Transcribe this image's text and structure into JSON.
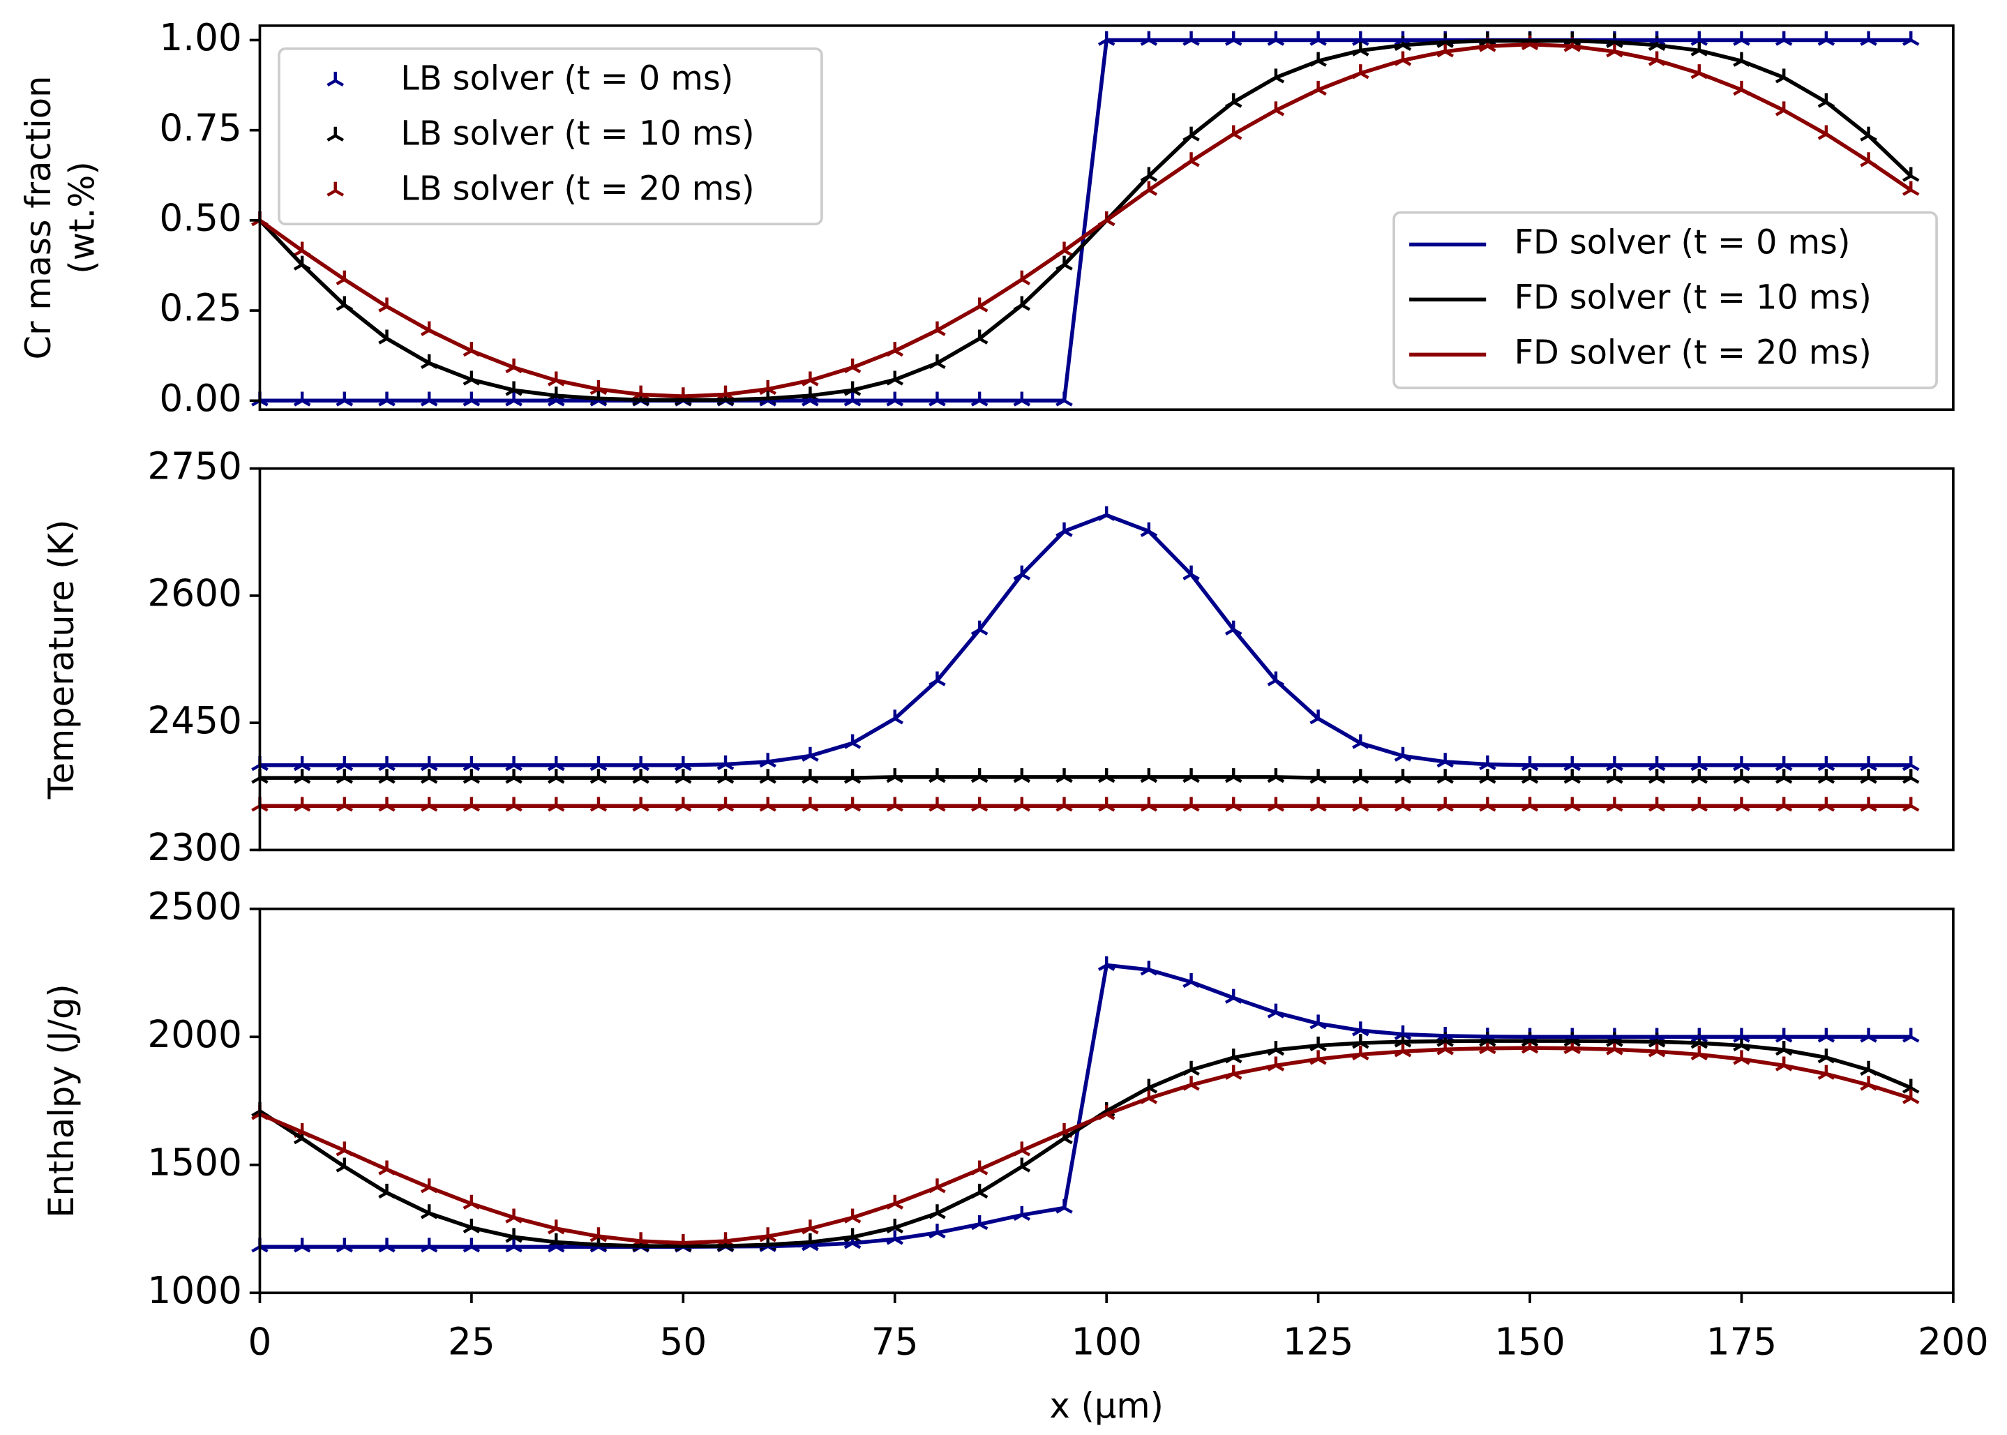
{
  "chart_data": [
    {
      "type": "line",
      "ylabel": [
        "Cr mass fraction",
        "(wt.%)"
      ],
      "x": [
        0,
        5,
        10,
        15,
        20,
        25,
        30,
        35,
        40,
        45,
        50,
        55,
        60,
        65,
        70,
        75,
        80,
        85,
        90,
        95,
        100,
        105,
        110,
        115,
        120,
        125,
        130,
        135,
        140,
        145,
        150,
        155,
        160,
        165,
        170,
        175,
        180,
        185,
        190,
        195
      ],
      "xlim": [
        0,
        200
      ],
      "ylim": [
        -0.025,
        1.04
      ],
      "yticks": [
        {
          "value": 0,
          "label": "0.00"
        },
        {
          "value": 0.25,
          "label": "0.25"
        },
        {
          "value": 0.5,
          "label": "0.50"
        },
        {
          "value": 0.75,
          "label": "0.75"
        },
        {
          "value": 1,
          "label": "1.00"
        }
      ],
      "series": [
        {
          "name": "LB solver (t = 0 ms)",
          "color": "#00008b",
          "marker": "tri_up",
          "legend_loc": "upper left",
          "values": [
            0,
            0,
            0,
            0,
            0,
            0,
            0,
            0,
            0,
            0,
            0,
            0,
            0,
            0,
            0,
            0,
            0,
            0,
            0,
            0,
            1,
            1,
            1,
            1,
            1,
            1,
            1,
            1,
            1,
            1,
            1,
            1,
            1,
            1,
            1,
            1,
            1,
            1,
            1,
            1
          ]
        },
        {
          "name": "LB solver (t = 10 ms)",
          "color": "#000000",
          "marker": "tri_up",
          "legend_loc": "upper left",
          "values": [
            0.5,
            0.377,
            0.265,
            0.172,
            0.104,
            0.058,
            0.029,
            0.014,
            0.006,
            0.002,
            0.002,
            0.002,
            0.006,
            0.014,
            0.029,
            0.058,
            0.104,
            0.172,
            0.265,
            0.377,
            0.5,
            0.623,
            0.735,
            0.828,
            0.896,
            0.942,
            0.971,
            0.986,
            0.994,
            0.998,
            0.998,
            0.998,
            0.994,
            0.986,
            0.971,
            0.942,
            0.896,
            0.828,
            0.735,
            0.623
          ]
        },
        {
          "name": "LB solver (t = 20 ms)",
          "color": "#8b0000",
          "marker": "tri_up",
          "legend_loc": "upper left",
          "values": [
            0.5,
            0.416,
            0.336,
            0.261,
            0.195,
            0.138,
            0.092,
            0.056,
            0.032,
            0.017,
            0.012,
            0.017,
            0.032,
            0.056,
            0.092,
            0.138,
            0.195,
            0.261,
            0.336,
            0.416,
            0.5,
            0.584,
            0.664,
            0.739,
            0.805,
            0.862,
            0.908,
            0.944,
            0.968,
            0.983,
            0.988,
            0.983,
            0.968,
            0.944,
            0.908,
            0.862,
            0.805,
            0.739,
            0.664,
            0.584
          ]
        },
        {
          "name": "FD solver (t = 0 ms)",
          "color": "#00008b",
          "legend_loc": "lower right",
          "values": [
            0,
            0,
            0,
            0,
            0,
            0,
            0,
            0,
            0,
            0,
            0,
            0,
            0,
            0,
            0,
            0,
            0,
            0,
            0,
            0,
            1,
            1,
            1,
            1,
            1,
            1,
            1,
            1,
            1,
            1,
            1,
            1,
            1,
            1,
            1,
            1,
            1,
            1,
            1,
            1
          ]
        },
        {
          "name": "FD solver (t = 10 ms)",
          "color": "#000000",
          "legend_loc": "lower right",
          "values": [
            0.5,
            0.377,
            0.265,
            0.172,
            0.104,
            0.058,
            0.029,
            0.014,
            0.006,
            0.002,
            0.002,
            0.002,
            0.006,
            0.014,
            0.029,
            0.058,
            0.104,
            0.172,
            0.265,
            0.377,
            0.5,
            0.623,
            0.735,
            0.828,
            0.896,
            0.942,
            0.971,
            0.986,
            0.994,
            0.998,
            0.998,
            0.998,
            0.994,
            0.986,
            0.971,
            0.942,
            0.896,
            0.828,
            0.735,
            0.623
          ]
        },
        {
          "name": "FD solver (t = 20 ms)",
          "color": "#8b0000",
          "legend_loc": "lower right",
          "values": [
            0.5,
            0.416,
            0.336,
            0.261,
            0.195,
            0.138,
            0.092,
            0.056,
            0.032,
            0.017,
            0.012,
            0.017,
            0.032,
            0.056,
            0.092,
            0.138,
            0.195,
            0.261,
            0.336,
            0.416,
            0.5,
            0.584,
            0.664,
            0.739,
            0.805,
            0.862,
            0.908,
            0.944,
            0.968,
            0.983,
            0.988,
            0.983,
            0.968,
            0.944,
            0.908,
            0.862,
            0.805,
            0.739,
            0.664,
            0.584
          ]
        }
      ]
    },
    {
      "type": "line",
      "ylabel": "Temperature (K)",
      "x": [
        0,
        5,
        10,
        15,
        20,
        25,
        30,
        35,
        40,
        45,
        50,
        55,
        60,
        65,
        70,
        75,
        80,
        85,
        90,
        95,
        100,
        105,
        110,
        115,
        120,
        125,
        130,
        135,
        140,
        145,
        150,
        155,
        160,
        165,
        170,
        175,
        180,
        185,
        190,
        195
      ],
      "xlim": [
        0,
        200
      ],
      "ylim": [
        2300,
        2750
      ],
      "yticks": [
        2300,
        2450,
        2600,
        2750
      ],
      "series": [
        {
          "color": "#00008b",
          "marker": "tri_up",
          "values": [
            2400,
            2400,
            2400,
            2400,
            2400,
            2400,
            2400,
            2400,
            2400,
            2400,
            2400,
            2401,
            2404,
            2411,
            2426,
            2455,
            2500,
            2560,
            2625,
            2676,
            2695,
            2676,
            2625,
            2560,
            2500,
            2455,
            2426,
            2411,
            2404,
            2401,
            2400,
            2400,
            2400,
            2400,
            2400,
            2400,
            2400,
            2400,
            2400,
            2400
          ]
        },
        {
          "color": "#000000",
          "marker": "tri_up",
          "values": [
            2385,
            2385,
            2385,
            2385,
            2385,
            2385,
            2385,
            2385,
            2385,
            2385,
            2385,
            2385,
            2385,
            2385,
            2385,
            2386,
            2386,
            2386,
            2386,
            2386,
            2386,
            2386,
            2386,
            2386,
            2386,
            2385,
            2385,
            2385,
            2385,
            2385,
            2385,
            2385,
            2385,
            2385,
            2385,
            2385,
            2385,
            2385,
            2385,
            2385
          ]
        },
        {
          "color": "#8b0000",
          "marker": "tri_up",
          "values": [
            2352,
            2352,
            2352,
            2352,
            2352,
            2352,
            2352,
            2352,
            2352,
            2352,
            2352,
            2352,
            2352,
            2352,
            2352,
            2352,
            2352,
            2352,
            2352,
            2352,
            2352,
            2352,
            2352,
            2352,
            2352,
            2352,
            2352,
            2352,
            2352,
            2352,
            2352,
            2352,
            2352,
            2352,
            2352,
            2352,
            2352,
            2352,
            2352,
            2352
          ]
        },
        {
          "color": "#00008b",
          "values": [
            2400,
            2400,
            2400,
            2400,
            2400,
            2400,
            2400,
            2400,
            2400,
            2400,
            2400,
            2401,
            2404,
            2411,
            2426,
            2455,
            2500,
            2560,
            2625,
            2676,
            2695,
            2676,
            2625,
            2560,
            2500,
            2455,
            2426,
            2411,
            2404,
            2401,
            2400,
            2400,
            2400,
            2400,
            2400,
            2400,
            2400,
            2400,
            2400,
            2400
          ]
        },
        {
          "color": "#000000",
          "values": [
            2385,
            2385,
            2385,
            2385,
            2385,
            2385,
            2385,
            2385,
            2385,
            2385,
            2385,
            2385,
            2385,
            2385,
            2385,
            2386,
            2386,
            2386,
            2386,
            2386,
            2386,
            2386,
            2386,
            2386,
            2386,
            2385,
            2385,
            2385,
            2385,
            2385,
            2385,
            2385,
            2385,
            2385,
            2385,
            2385,
            2385,
            2385,
            2385,
            2385
          ]
        },
        {
          "color": "#8b0000",
          "values": [
            2352,
            2352,
            2352,
            2352,
            2352,
            2352,
            2352,
            2352,
            2352,
            2352,
            2352,
            2352,
            2352,
            2352,
            2352,
            2352,
            2352,
            2352,
            2352,
            2352,
            2352,
            2352,
            2352,
            2352,
            2352,
            2352,
            2352,
            2352,
            2352,
            2352,
            2352,
            2352,
            2352,
            2352,
            2352,
            2352,
            2352,
            2352,
            2352,
            2352
          ]
        }
      ]
    },
    {
      "type": "line",
      "ylabel": "Enthalpy (J/g)",
      "xlabel": "x (µm)",
      "x": [
        0,
        5,
        10,
        15,
        20,
        25,
        30,
        35,
        40,
        45,
        50,
        55,
        60,
        65,
        70,
        75,
        80,
        85,
        90,
        95,
        100,
        105,
        110,
        115,
        120,
        125,
        130,
        135,
        140,
        145,
        150,
        155,
        160,
        165,
        170,
        175,
        180,
        185,
        190,
        195
      ],
      "xlim": [
        0,
        200
      ],
      "xticks": [
        0,
        25,
        50,
        75,
        100,
        125,
        150,
        175,
        200
      ],
      "ylim": [
        1000,
        2500
      ],
      "yticks": [
        1000,
        1500,
        2000,
        2500
      ],
      "series": [
        {
          "color": "#00008b",
          "marker": "tri_up",
          "values": [
            1180,
            1180,
            1180,
            1180,
            1180,
            1180,
            1180,
            1180,
            1180,
            1180,
            1180,
            1181,
            1182,
            1186,
            1194,
            1210,
            1235,
            1268,
            1304,
            1332,
            2280,
            2262,
            2214,
            2152,
            2095,
            2052,
            2025,
            2010,
            2004,
            2001,
            2000,
            2000,
            2000,
            2000,
            2000,
            2000,
            2000,
            2000,
            2000,
            2000
          ]
        },
        {
          "color": "#000000",
          "marker": "tri_up",
          "values": [
            1710,
            1603,
            1493,
            1391,
            1311,
            1255,
            1218,
            1198,
            1188,
            1183,
            1183,
            1183,
            1188,
            1198,
            1218,
            1255,
            1311,
            1391,
            1493,
            1603,
            1710,
            1801,
            1871,
            1919,
            1949,
            1966,
            1976,
            1981,
            1983,
            1984,
            1984,
            1984,
            1983,
            1981,
            1976,
            1966,
            1949,
            1919,
            1871,
            1801
          ]
        },
        {
          "color": "#8b0000",
          "marker": "tri_up",
          "values": [
            1698,
            1628,
            1556,
            1482,
            1412,
            1348,
            1294,
            1251,
            1221,
            1202,
            1195,
            1202,
            1221,
            1251,
            1294,
            1348,
            1412,
            1482,
            1556,
            1628,
            1698,
            1760,
            1812,
            1855,
            1888,
            1913,
            1931,
            1943,
            1951,
            1955,
            1957,
            1955,
            1951,
            1943,
            1931,
            1913,
            1888,
            1855,
            1812,
            1760
          ]
        },
        {
          "color": "#00008b",
          "values": [
            1180,
            1180,
            1180,
            1180,
            1180,
            1180,
            1180,
            1180,
            1180,
            1180,
            1180,
            1181,
            1182,
            1186,
            1194,
            1210,
            1235,
            1268,
            1304,
            1332,
            2280,
            2262,
            2214,
            2152,
            2095,
            2052,
            2025,
            2010,
            2004,
            2001,
            2000,
            2000,
            2000,
            2000,
            2000,
            2000,
            2000,
            2000,
            2000,
            2000
          ]
        },
        {
          "color": "#000000",
          "values": [
            1710,
            1603,
            1493,
            1391,
            1311,
            1255,
            1218,
            1198,
            1188,
            1183,
            1183,
            1183,
            1188,
            1198,
            1218,
            1255,
            1311,
            1391,
            1493,
            1603,
            1710,
            1801,
            1871,
            1919,
            1949,
            1966,
            1976,
            1981,
            1983,
            1984,
            1984,
            1984,
            1983,
            1981,
            1976,
            1966,
            1949,
            1919,
            1871,
            1801
          ]
        },
        {
          "color": "#8b0000",
          "values": [
            1698,
            1628,
            1556,
            1482,
            1412,
            1348,
            1294,
            1251,
            1221,
            1202,
            1195,
            1202,
            1221,
            1251,
            1294,
            1348,
            1412,
            1482,
            1556,
            1628,
            1698,
            1760,
            1812,
            1855,
            1888,
            1913,
            1931,
            1943,
            1951,
            1955,
            1957,
            1955,
            1951,
            1943,
            1931,
            1913,
            1888,
            1855,
            1812,
            1760
          ]
        }
      ]
    }
  ]
}
